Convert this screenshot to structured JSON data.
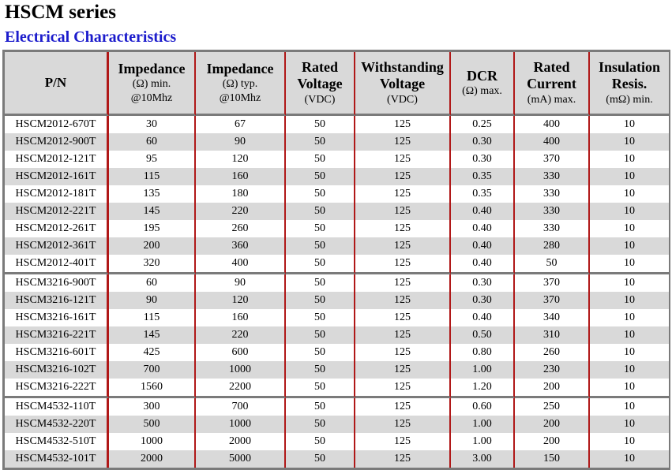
{
  "header": {
    "title": "HSCM series",
    "subtitle": "Electrical Characteristics"
  },
  "columns": [
    {
      "main": [
        "P/N"
      ],
      "sub": []
    },
    {
      "main": [
        "Impedance"
      ],
      "sub": [
        "(Ω) min.",
        "@10Mhz"
      ]
    },
    {
      "main": [
        "Impedance"
      ],
      "sub": [
        "(Ω) typ.",
        "@10Mhz"
      ]
    },
    {
      "main": [
        "Rated",
        "Voltage"
      ],
      "sub": [
        "(VDC)"
      ]
    },
    {
      "main": [
        "Withstanding",
        "Voltage"
      ],
      "sub": [
        "(VDC)"
      ]
    },
    {
      "main": [
        "DCR"
      ],
      "sub": [
        "(Ω) max."
      ]
    },
    {
      "main": [
        "Rated",
        "Current"
      ],
      "sub": [
        "(mA) max."
      ]
    },
    {
      "main": [
        "Insulation",
        "Resis."
      ],
      "sub": [
        "(mΩ) min."
      ]
    }
  ],
  "groups": [
    {
      "rows": [
        [
          "HSCM2012-670T",
          "30",
          "67",
          "50",
          "125",
          "0.25",
          "400",
          "10"
        ],
        [
          "HSCM2012-900T",
          "60",
          "90",
          "50",
          "125",
          "0.30",
          "400",
          "10"
        ],
        [
          "HSCM2012-121T",
          "95",
          "120",
          "50",
          "125",
          "0.30",
          "370",
          "10"
        ],
        [
          "HSCM2012-161T",
          "115",
          "160",
          "50",
          "125",
          "0.35",
          "330",
          "10"
        ],
        [
          "HSCM2012-181T",
          "135",
          "180",
          "50",
          "125",
          "0.35",
          "330",
          "10"
        ],
        [
          "HSCM2012-221T",
          "145",
          "220",
          "50",
          "125",
          "0.40",
          "330",
          "10"
        ],
        [
          "HSCM2012-261T",
          "195",
          "260",
          "50",
          "125",
          "0.40",
          "330",
          "10"
        ],
        [
          "HSCM2012-361T",
          "200",
          "360",
          "50",
          "125",
          "0.40",
          "280",
          "10"
        ],
        [
          "HSCM2012-401T",
          "320",
          "400",
          "50",
          "125",
          "0.40",
          "50",
          "10"
        ]
      ]
    },
    {
      "rows": [
        [
          "HSCM3216-900T",
          "60",
          "90",
          "50",
          "125",
          "0.30",
          "370",
          "10"
        ],
        [
          "HSCM3216-121T",
          "90",
          "120",
          "50",
          "125",
          "0.30",
          "370",
          "10"
        ],
        [
          "HSCM3216-161T",
          "115",
          "160",
          "50",
          "125",
          "0.40",
          "340",
          "10"
        ],
        [
          "HSCM3216-221T",
          "145",
          "220",
          "50",
          "125",
          "0.50",
          "310",
          "10"
        ],
        [
          "HSCM3216-601T",
          "425",
          "600",
          "50",
          "125",
          "0.80",
          "260",
          "10"
        ],
        [
          "HSCM3216-102T",
          "700",
          "1000",
          "50",
          "125",
          "1.00",
          "230",
          "10"
        ],
        [
          "HSCM3216-222T",
          "1560",
          "2200",
          "50",
          "125",
          "1.20",
          "200",
          "10"
        ]
      ]
    },
    {
      "rows": [
        [
          "HSCM4532-110T",
          "300",
          "700",
          "50",
          "125",
          "0.60",
          "250",
          "10"
        ],
        [
          "HSCM4532-220T",
          "500",
          "1000",
          "50",
          "125",
          "1.00",
          "200",
          "10"
        ],
        [
          "HSCM4532-510T",
          "1000",
          "2000",
          "50",
          "125",
          "1.00",
          "200",
          "10"
        ],
        [
          "HSCM4532-101T",
          "2000",
          "5000",
          "50",
          "125",
          "3.00",
          "150",
          "10"
        ]
      ]
    }
  ]
}
